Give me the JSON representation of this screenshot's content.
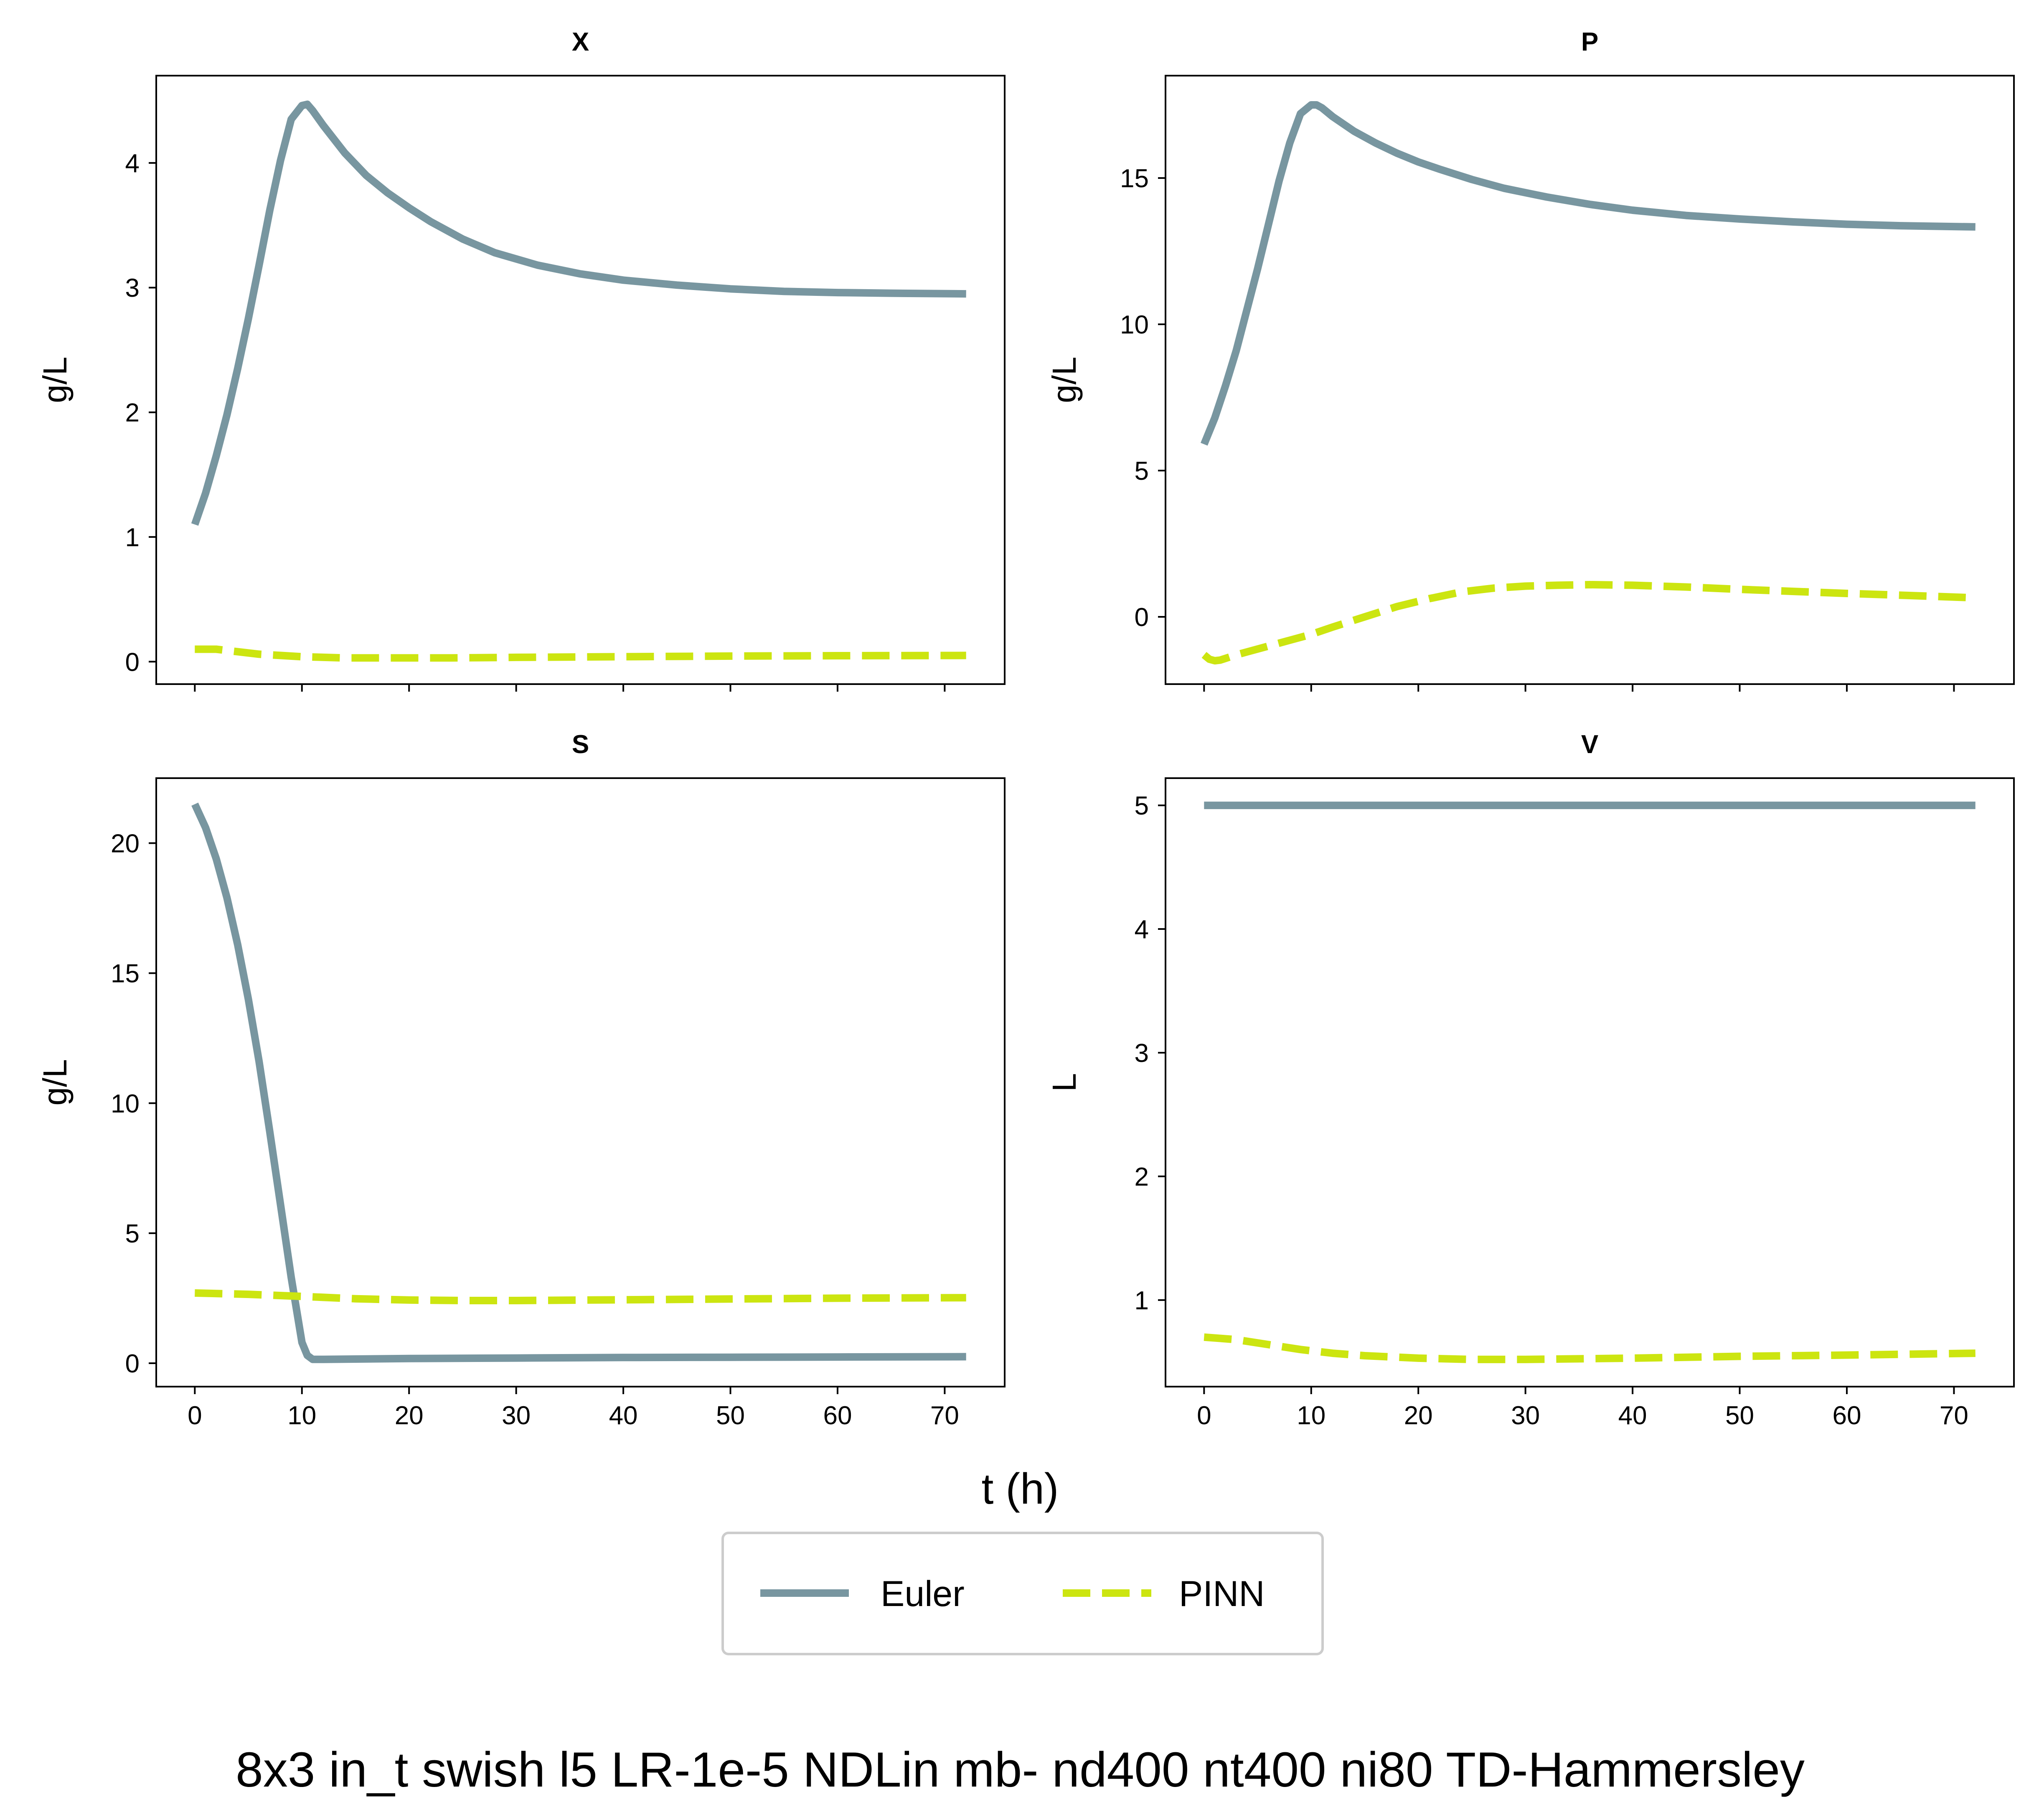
{
  "figure": {
    "suptitle": "8x3 in_t swish l5 LR-1e-5 NDLin mb- nd400 nt400 ni80 TD-Hammersley",
    "xlabel": "t (h)"
  },
  "legend": {
    "items": [
      {
        "label": "Euler",
        "color": "#7896a0",
        "style": "solid"
      },
      {
        "label": "PINN",
        "color": "#cce510",
        "style": "dashed"
      }
    ]
  },
  "chart_data": [
    {
      "type": "line",
      "title": "X",
      "xlabel": "",
      "ylabel": "g/L",
      "xlim": [
        -3.6,
        75.6
      ],
      "ylim": [
        -0.18,
        4.7
      ],
      "xticks": [
        0,
        10,
        20,
        30,
        40,
        50,
        60,
        70
      ],
      "yticks": [
        0,
        1,
        2,
        3,
        4
      ],
      "show_xticklabels": false,
      "series": [
        {
          "name": "Euler",
          "x": [
            0,
            1,
            2,
            3,
            4,
            5,
            6,
            7,
            8,
            9,
            10,
            10.5,
            11,
            12,
            14,
            16,
            18,
            20,
            22,
            25,
            28,
            32,
            36,
            40,
            45,
            50,
            55,
            60,
            65,
            72
          ],
          "y": [
            1.1,
            1.35,
            1.65,
            1.98,
            2.35,
            2.75,
            3.18,
            3.62,
            4.02,
            4.35,
            4.46,
            4.47,
            4.42,
            4.3,
            4.08,
            3.9,
            3.76,
            3.64,
            3.53,
            3.39,
            3.28,
            3.18,
            3.11,
            3.06,
            3.02,
            2.99,
            2.97,
            2.96,
            2.955,
            2.95
          ]
        },
        {
          "name": "PINN",
          "x": [
            0,
            2,
            4,
            6,
            8,
            10,
            14,
            18,
            24,
            30,
            40,
            50,
            60,
            72
          ],
          "y": [
            0.1,
            0.1,
            0.08,
            0.06,
            0.05,
            0.04,
            0.03,
            0.03,
            0.03,
            0.035,
            0.04,
            0.045,
            0.048,
            0.05
          ]
        }
      ]
    },
    {
      "type": "line",
      "title": "P",
      "xlabel": "",
      "ylabel": "g/L",
      "xlim": [
        -3.6,
        75.6
      ],
      "ylim": [
        -2.3,
        18.5
      ],
      "xticks": [
        0,
        10,
        20,
        30,
        40,
        50,
        60,
        70
      ],
      "yticks": [
        0,
        5,
        10,
        15
      ],
      "show_xticklabels": false,
      "series": [
        {
          "name": "Euler",
          "x": [
            0,
            1,
            2,
            3,
            4,
            5,
            6,
            7,
            8,
            9,
            10,
            10.5,
            11,
            12,
            14,
            16,
            18,
            20,
            22,
            25,
            28,
            32,
            36,
            40,
            45,
            50,
            55,
            60,
            65,
            72
          ],
          "y": [
            5.9,
            6.8,
            7.9,
            9.1,
            10.5,
            11.9,
            13.4,
            14.9,
            16.2,
            17.2,
            17.5,
            17.5,
            17.4,
            17.1,
            16.6,
            16.2,
            15.85,
            15.55,
            15.3,
            14.95,
            14.65,
            14.35,
            14.1,
            13.9,
            13.72,
            13.6,
            13.5,
            13.42,
            13.37,
            13.33
          ]
        },
        {
          "name": "PINN",
          "x": [
            0,
            0.5,
            1,
            1.5,
            2,
            3,
            4,
            6,
            8,
            10,
            12,
            15,
            18,
            21,
            24,
            27,
            30,
            33,
            36,
            40,
            45,
            50,
            55,
            60,
            65,
            72
          ],
          "y": [
            -1.3,
            -1.45,
            -1.5,
            -1.48,
            -1.42,
            -1.3,
            -1.2,
            -1.0,
            -0.8,
            -0.6,
            -0.35,
            0.0,
            0.35,
            0.62,
            0.85,
            0.98,
            1.05,
            1.08,
            1.1,
            1.08,
            1.02,
            0.94,
            0.87,
            0.8,
            0.74,
            0.65
          ]
        }
      ]
    },
    {
      "type": "line",
      "title": "S",
      "xlabel": "",
      "ylabel": "g/L",
      "xlim": [
        -3.6,
        75.6
      ],
      "ylim": [
        -0.9,
        22.5
      ],
      "xticks": [
        0,
        10,
        20,
        30,
        40,
        50,
        60,
        70
      ],
      "yticks": [
        0,
        5,
        10,
        15,
        20
      ],
      "show_xticklabels": true,
      "series": [
        {
          "name": "Euler",
          "x": [
            0,
            1,
            2,
            3,
            4,
            5,
            6,
            7,
            8,
            9,
            10,
            10.5,
            11,
            12,
            15,
            20,
            30,
            40,
            50,
            60,
            72
          ],
          "y": [
            21.5,
            20.6,
            19.4,
            17.9,
            16.1,
            14.0,
            11.6,
            8.9,
            6.1,
            3.3,
            0.8,
            0.3,
            0.15,
            0.15,
            0.16,
            0.18,
            0.2,
            0.22,
            0.23,
            0.24,
            0.25
          ]
        },
        {
          "name": "PINN",
          "x": [
            0,
            5,
            10,
            15,
            20,
            25,
            30,
            40,
            50,
            60,
            72
          ],
          "y": [
            2.7,
            2.65,
            2.57,
            2.48,
            2.43,
            2.41,
            2.41,
            2.44,
            2.47,
            2.5,
            2.52
          ]
        }
      ]
    },
    {
      "type": "line",
      "title": "V",
      "xlabel": "",
      "ylabel": "L",
      "xlim": [
        -3.6,
        75.6
      ],
      "ylim": [
        0.3,
        5.22
      ],
      "xticks": [
        0,
        10,
        20,
        30,
        40,
        50,
        60,
        70
      ],
      "yticks": [
        1,
        2,
        3,
        4,
        5
      ],
      "show_xticklabels": true,
      "series": [
        {
          "name": "Euler",
          "x": [
            0,
            72
          ],
          "y": [
            5.0,
            5.0
          ]
        },
        {
          "name": "PINN",
          "x": [
            0,
            3,
            6,
            9,
            12,
            15,
            20,
            25,
            30,
            40,
            50,
            60,
            72
          ],
          "y": [
            0.7,
            0.68,
            0.64,
            0.6,
            0.57,
            0.55,
            0.53,
            0.52,
            0.52,
            0.53,
            0.545,
            0.555,
            0.57
          ]
        }
      ]
    }
  ]
}
